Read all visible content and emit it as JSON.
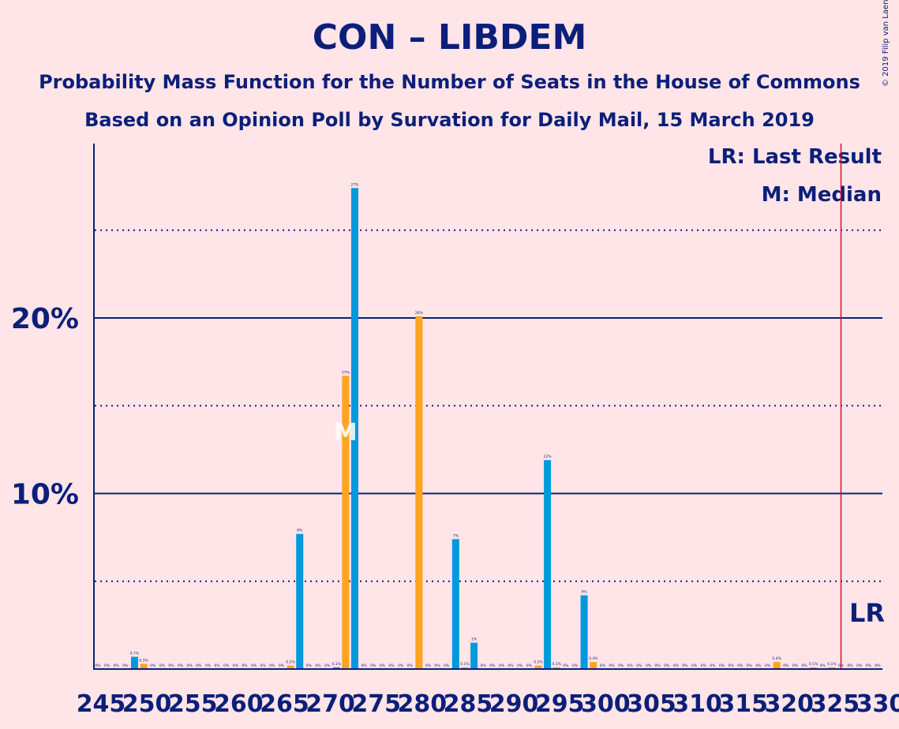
{
  "title": "CON – LIBDEM",
  "subtitle1": "Probability Mass Function for the Number of Seats in the House of Commons",
  "subtitle2": "Based on an Opinion Poll by Survation for Daily Mail, 15 March 2019",
  "credit": "© 2019 Filip van Laenen",
  "legend": {
    "last_result": "LR: Last Result",
    "median": "M: Median"
  },
  "markers": {
    "median_label": "M",
    "lr_label": "LR"
  },
  "colors": {
    "background": "#ffe4e8",
    "text": "#0b1f7a",
    "blue": "#0099dd",
    "orange": "#ffa421",
    "lr_line": "#cc1133"
  },
  "chart_data": {
    "type": "bar",
    "xlim": [
      245,
      330
    ],
    "ylim": [
      0,
      30
    ],
    "x_ticks": [
      245,
      250,
      255,
      260,
      265,
      270,
      275,
      280,
      285,
      290,
      295,
      300,
      305,
      310,
      315,
      320,
      325,
      330
    ],
    "y_ticks_labeled": [
      {
        "value": 10,
        "label": "10%"
      },
      {
        "value": 20,
        "label": "20%"
      }
    ],
    "y_gridlines_dotted": [
      5,
      15,
      25
    ],
    "median_seat": 272,
    "last_result_seat": 326,
    "series": [
      {
        "color": "blue",
        "bars": [
          {
            "x": 245,
            "value": 0,
            "label": "0%"
          },
          {
            "x": 247,
            "value": 0,
            "label": "0%"
          },
          {
            "x": 249,
            "value": 0.7,
            "label": "0.7%"
          },
          {
            "x": 251,
            "value": 0,
            "label": "0%"
          },
          {
            "x": 253,
            "value": 0,
            "label": "0%"
          },
          {
            "x": 255,
            "value": 0,
            "label": "0%"
          },
          {
            "x": 257,
            "value": 0,
            "label": "0%"
          },
          {
            "x": 259,
            "value": 0,
            "label": "0%"
          },
          {
            "x": 261,
            "value": 0,
            "label": "0%"
          },
          {
            "x": 263,
            "value": 0,
            "label": "0%"
          },
          {
            "x": 265,
            "value": 0,
            "label": "0%"
          },
          {
            "x": 267,
            "value": 7.7,
            "label": "8%"
          },
          {
            "x": 269,
            "value": 0,
            "label": "0%"
          },
          {
            "x": 271,
            "value": 0.1,
            "label": "0.1%"
          },
          {
            "x": 273,
            "value": 27.4,
            "label": "27%"
          },
          {
            "x": 275,
            "value": 0,
            "label": "0%"
          },
          {
            "x": 277,
            "value": 0,
            "label": "0%"
          },
          {
            "x": 279,
            "value": 0,
            "label": "0%"
          },
          {
            "x": 281,
            "value": 0,
            "label": "0%"
          },
          {
            "x": 283,
            "value": 0,
            "label": "0%"
          },
          {
            "x": 284,
            "value": 7.4,
            "label": "7%"
          },
          {
            "x": 286,
            "value": 1.5,
            "label": "1%"
          },
          {
            "x": 288,
            "value": 0,
            "label": "0%"
          },
          {
            "x": 290,
            "value": 0,
            "label": "0%"
          },
          {
            "x": 292,
            "value": 0,
            "label": "0%"
          },
          {
            "x": 294,
            "value": 11.9,
            "label": "12%"
          },
          {
            "x": 296,
            "value": 0,
            "label": "0%"
          },
          {
            "x": 298,
            "value": 4.2,
            "label": "4%"
          },
          {
            "x": 300,
            "value": 0,
            "label": "0%"
          },
          {
            "x": 302,
            "value": 0,
            "label": "0%"
          },
          {
            "x": 304,
            "value": 0,
            "label": "0%"
          },
          {
            "x": 306,
            "value": 0,
            "label": "0%"
          },
          {
            "x": 308,
            "value": 0,
            "label": "0%"
          },
          {
            "x": 310,
            "value": 0,
            "label": "0%"
          },
          {
            "x": 312,
            "value": 0,
            "label": "0%"
          },
          {
            "x": 314,
            "value": 0,
            "label": "0%"
          },
          {
            "x": 316,
            "value": 0,
            "label": "0%"
          },
          {
            "x": 318,
            "value": 0,
            "label": "0%"
          },
          {
            "x": 320,
            "value": 0,
            "label": "0%"
          },
          {
            "x": 322,
            "value": 0,
            "label": "0%"
          },
          {
            "x": 324,
            "value": 0,
            "label": "0%"
          },
          {
            "x": 326,
            "value": 0,
            "label": "0%"
          },
          {
            "x": 328,
            "value": 0,
            "label": "0%"
          },
          {
            "x": 330,
            "value": 0,
            "label": "0%"
          }
        ]
      },
      {
        "color": "orange",
        "bars": [
          {
            "x": 246,
            "value": 0,
            "label": "0%"
          },
          {
            "x": 248,
            "value": 0,
            "label": "0%"
          },
          {
            "x": 250,
            "value": 0.3,
            "label": "0.3%"
          },
          {
            "x": 252,
            "value": 0,
            "label": "0%"
          },
          {
            "x": 254,
            "value": 0,
            "label": "0%"
          },
          {
            "x": 256,
            "value": 0,
            "label": "0%"
          },
          {
            "x": 258,
            "value": 0,
            "label": "0%"
          },
          {
            "x": 260,
            "value": 0,
            "label": "0%"
          },
          {
            "x": 262,
            "value": 0,
            "label": "0%"
          },
          {
            "x": 264,
            "value": 0,
            "label": "0%"
          },
          {
            "x": 266,
            "value": 0.2,
            "label": "0.2%"
          },
          {
            "x": 268,
            "value": 0,
            "label": "0%"
          },
          {
            "x": 270,
            "value": 0,
            "label": "0%"
          },
          {
            "x": 272,
            "value": 16.7,
            "label": "17%"
          },
          {
            "x": 274,
            "value": 0,
            "label": "0%"
          },
          {
            "x": 276,
            "value": 0,
            "label": "0%"
          },
          {
            "x": 278,
            "value": 0,
            "label": "0%"
          },
          {
            "x": 280,
            "value": 20.1,
            "label": "20%"
          },
          {
            "x": 282,
            "value": 0,
            "label": "0%"
          },
          {
            "x": 285,
            "value": 0.1,
            "label": "0.1%"
          },
          {
            "x": 287,
            "value": 0,
            "label": "0%"
          },
          {
            "x": 289,
            "value": 0,
            "label": "0%"
          },
          {
            "x": 291,
            "value": 0,
            "label": "0%"
          },
          {
            "x": 293,
            "value": 0.2,
            "label": "0.2%"
          },
          {
            "x": 295,
            "value": 0.1,
            "label": "0.1%"
          },
          {
            "x": 297,
            "value": 0,
            "label": "0%"
          },
          {
            "x": 299,
            "value": 0.4,
            "label": "0.4%"
          },
          {
            "x": 301,
            "value": 0,
            "label": "0%"
          },
          {
            "x": 303,
            "value": 0,
            "label": "0%"
          },
          {
            "x": 305,
            "value": 0,
            "label": "0%"
          },
          {
            "x": 307,
            "value": 0,
            "label": "0%"
          },
          {
            "x": 309,
            "value": 0,
            "label": "0%"
          },
          {
            "x": 311,
            "value": 0,
            "label": "0%"
          },
          {
            "x": 313,
            "value": 0,
            "label": "0%"
          },
          {
            "x": 315,
            "value": 0,
            "label": "0%"
          },
          {
            "x": 317,
            "value": 0,
            "label": "0%"
          },
          {
            "x": 319,
            "value": 0.4,
            "label": "0.4%"
          },
          {
            "x": 321,
            "value": 0,
            "label": "0%"
          },
          {
            "x": 323,
            "value": 0.1,
            "label": "0.1%"
          },
          {
            "x": 325,
            "value": 0.1,
            "label": "0.1%"
          },
          {
            "x": 327,
            "value": 0,
            "label": "0%"
          },
          {
            "x": 329,
            "value": 0,
            "label": "0%"
          }
        ]
      }
    ]
  }
}
